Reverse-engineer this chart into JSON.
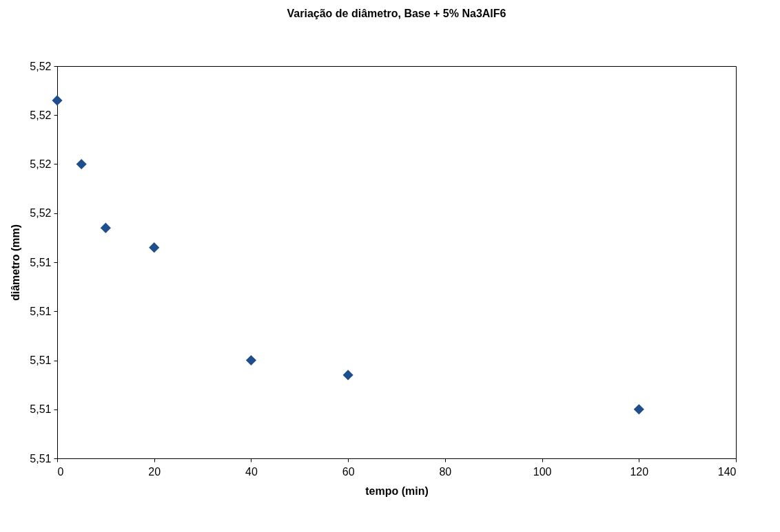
{
  "chart_data": {
    "type": "scatter",
    "title": "Variação de diâmetro, Base + 5% Na3AlF6",
    "xlabel": "tempo (min)",
    "ylabel": "diâmetro (mm)",
    "x": [
      0,
      5,
      10,
      20,
      40,
      60,
      120
    ],
    "series": [
      {
        "color": "#1f4e8c",
        "values": [
          5.5173,
          5.516,
          5.5147,
          5.5143,
          5.512,
          5.5117,
          5.511
        ]
      }
    ],
    "xlim": [
      0,
      140
    ],
    "xticks": [
      0,
      20,
      40,
      60,
      80,
      100,
      120,
      140
    ],
    "ylim": [
      5.51,
      5.518
    ],
    "yticks": [
      {
        "value": 5.51,
        "label": "5,51"
      },
      {
        "value": 5.511,
        "label": "5,51"
      },
      {
        "value": 5.512,
        "label": "5,51"
      },
      {
        "value": 5.513,
        "label": "5,51"
      },
      {
        "value": 5.514,
        "label": "5,51"
      },
      {
        "value": 5.515,
        "label": "5,52"
      },
      {
        "value": 5.516,
        "label": "5,52"
      },
      {
        "value": 5.517,
        "label": "5,52"
      },
      {
        "value": 5.518,
        "label": "5,52"
      }
    ],
    "grid": false,
    "legend": false,
    "marker": "diamond"
  }
}
